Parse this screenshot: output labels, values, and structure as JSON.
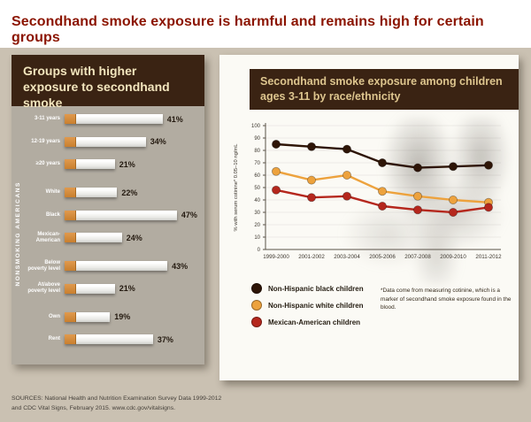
{
  "header": {
    "title": "Secondhand smoke exposure is harmful and remains high for certain groups"
  },
  "colors": {
    "title_red": "#8b1400",
    "background_beige": "#cac1b2",
    "panel_gray": "#b2aca1",
    "dark_brown": "#3a2313",
    "header_cream": "#f2e5bd",
    "band_tan": "#ddc58e",
    "black_series": "#2e1507",
    "white_series": "#eda23d",
    "mexican_series": "#b5271d"
  },
  "chart_data": [
    {
      "type": "bar",
      "title": "Groups with higher exposure to secondhand smoke",
      "axis_label": "NONSMOKING AMERICANS",
      "unit": "%",
      "xlim": [
        0,
        50
      ],
      "categories": [
        "3-11 years",
        "12-19 years",
        "≥20 years",
        "White",
        "Black",
        "Mexican-American",
        "Below poverty level",
        "At/above poverty level",
        "Own",
        "Rent"
      ],
      "values": [
        41,
        34,
        21,
        22,
        47,
        24,
        43,
        21,
        19,
        37
      ],
      "value_labels": [
        "41%",
        "34%",
        "21%",
        "22%",
        "47%",
        "24%",
        "43%",
        "21%",
        "19%",
        "37%"
      ],
      "group_breaks_after": [
        "≥20 years",
        "Mexican-American",
        "At/above poverty level"
      ]
    },
    {
      "type": "line",
      "title": "Secondhand smoke exposure among children ages 3-11 by race/ethnicity",
      "ylabel": "% with serum cotinine* 0.05–10 ng/mL",
      "ylim": [
        0,
        100
      ],
      "yticks": [
        0,
        10,
        20,
        30,
        40,
        50,
        60,
        70,
        80,
        90,
        100
      ],
      "grid": true,
      "legend_position": "bottom",
      "categories": [
        "1999-2000",
        "2001-2002",
        "2003-2004",
        "2005-2006",
        "2007-2008",
        "2009-2010",
        "2011-2012"
      ],
      "series": [
        {
          "name": "Non-Hispanic black children",
          "color": "#2e1507",
          "values": [
            85,
            83,
            81,
            70,
            66,
            67,
            68
          ]
        },
        {
          "name": "Non-Hispanic white children",
          "color": "#eda23d",
          "values": [
            63,
            56,
            60,
            47,
            43,
            40,
            38
          ]
        },
        {
          "name": "Mexican-American children",
          "color": "#b5271d",
          "values": [
            48,
            42,
            43,
            35,
            32,
            30,
            34
          ]
        }
      ],
      "footnote": "*Data come from measuring cotinine, which is a marker of secondhand smoke exposure found in the blood."
    }
  ],
  "sources": {
    "line1": "SOURCES: National Health and Nutrition Examination Survey Data 1999-2012",
    "line2": "and CDC Vital Signs, February 2015. www.cdc.gov/vitalsigns."
  }
}
